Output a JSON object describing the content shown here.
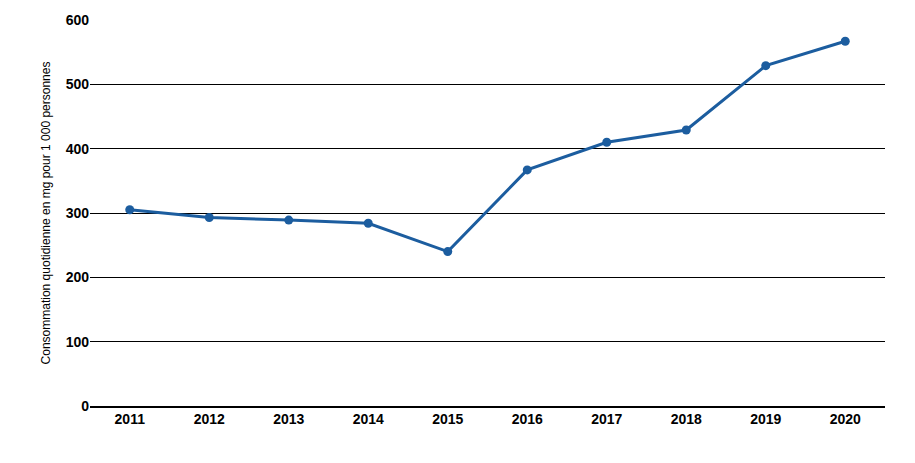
{
  "chart_data": {
    "type": "line",
    "y_label": "Consommation quotidienne en mg pour 1 000 personnes",
    "categories": [
      "2011",
      "2012",
      "2013",
      "2014",
      "2015",
      "2016",
      "2017",
      "2018",
      "2019",
      "2020"
    ],
    "values": [
      305,
      293,
      289,
      284,
      240,
      367,
      410,
      429,
      529,
      567
    ],
    "color": "#1c5d9f",
    "marker": "circle",
    "line_style": "solid",
    "ylim": [
      0,
      600
    ],
    "yticks": [
      0,
      100,
      200,
      300,
      400,
      500,
      600
    ],
    "grid": true
  }
}
